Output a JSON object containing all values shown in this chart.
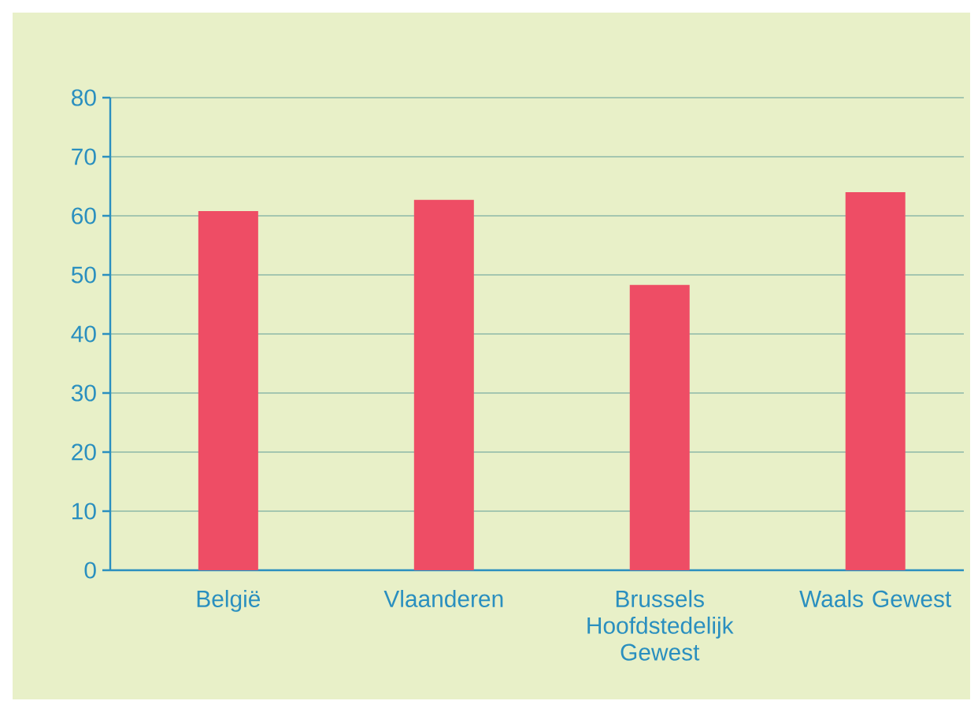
{
  "chart_data": {
    "type": "bar",
    "categories": [
      "België",
      "Vlaanderen",
      "Brussels Hoofdstedelijk Gewest",
      "Waals Gewest"
    ],
    "values": [
      60.8,
      62.7,
      48.3,
      64.0
    ],
    "color": "#ee4d65",
    "ylim": [
      0,
      80
    ],
    "yticks": [
      0,
      10,
      20,
      30,
      40,
      50,
      60,
      70,
      80
    ],
    "grid": "y"
  }
}
